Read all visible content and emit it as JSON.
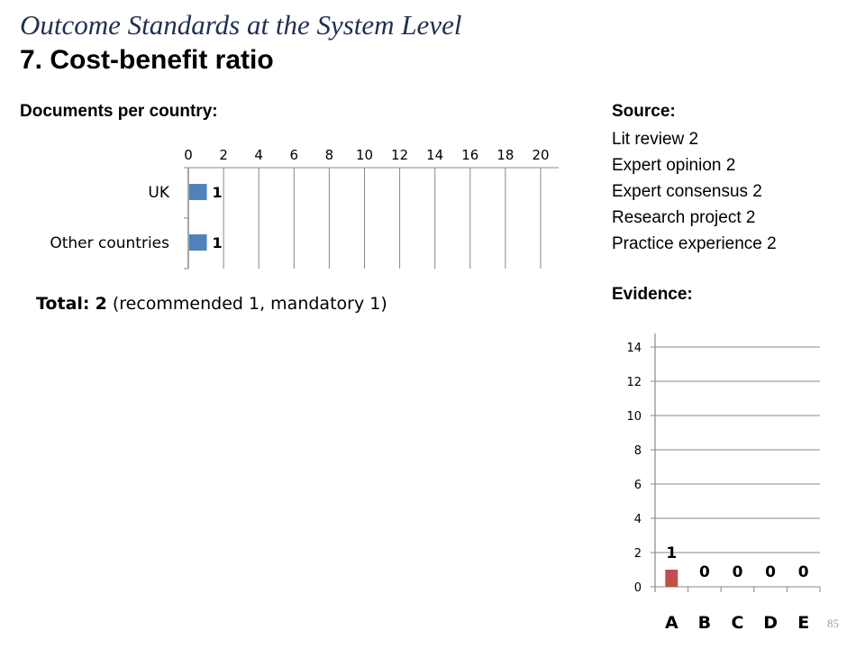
{
  "title": {
    "line1": "Outcome Standards at the System Level",
    "line2": "7. Cost-benefit ratio"
  },
  "documents": {
    "heading": "Documents per country:",
    "total_label": "Total:",
    "total_value": "2",
    "total_detail": "(recommended 1, mandatory 1)"
  },
  "source": {
    "heading": "Source:",
    "items": [
      "Lit review 2",
      "Expert opinion 2",
      "Expert consensus 2",
      "Research project 2",
      "Practice experience 2"
    ]
  },
  "evidence": {
    "heading": "Evidence:"
  },
  "page_number": "85",
  "colors": {
    "title_line1": "#1f3050",
    "bar_blue": "#4f81bd",
    "bar_red": "#c0504d",
    "grid": "#888888",
    "page_number": "#a0a0a0"
  },
  "chart_data": [
    {
      "type": "bar",
      "orientation": "horizontal",
      "categories": [
        "UK",
        "Other countries"
      ],
      "values": [
        1,
        1
      ],
      "data_labels": [
        "1",
        "1"
      ],
      "xlim": [
        0,
        20
      ],
      "x_ticks": [
        0,
        2,
        4,
        6,
        8,
        10,
        12,
        14,
        16,
        18,
        20
      ],
      "x_axis_position": "top",
      "grid": true,
      "color": "#4f81bd"
    },
    {
      "type": "bar",
      "orientation": "vertical",
      "categories": [
        "A",
        "B",
        "C",
        "D",
        "E"
      ],
      "values": [
        1,
        0,
        0,
        0,
        0
      ],
      "data_labels": [
        "1",
        "0",
        "0",
        "0",
        "0"
      ],
      "ylim": [
        0,
        14
      ],
      "y_ticks": [
        0,
        2,
        4,
        6,
        8,
        10,
        12,
        14
      ],
      "grid": true,
      "color": "#c0504d"
    }
  ]
}
